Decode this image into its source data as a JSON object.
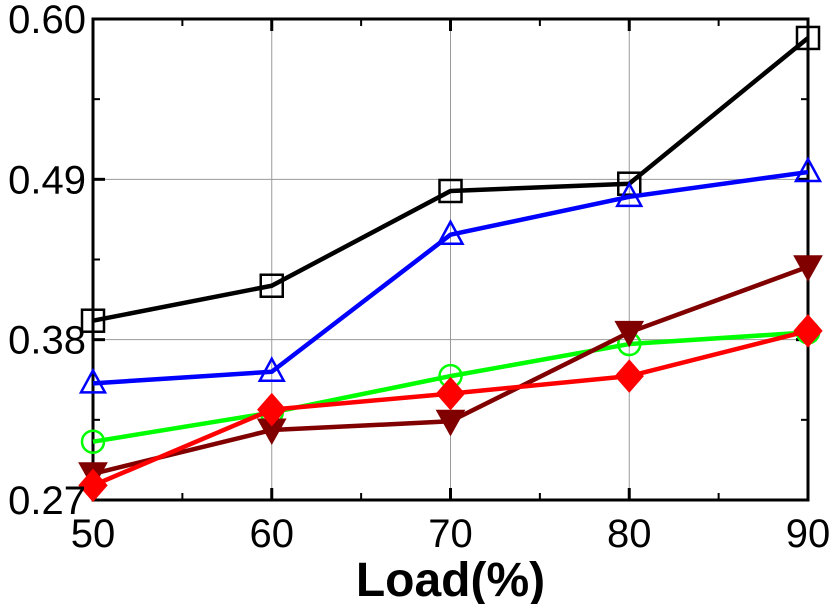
{
  "chart_data": {
    "type": "line",
    "title": "",
    "xlabel": "Load(%)",
    "ylabel": "",
    "x": [
      50,
      60,
      70,
      80,
      90
    ],
    "xlim": [
      50,
      90
    ],
    "ylim": [
      0.27,
      0.6
    ],
    "x_ticks": [
      "50",
      "60",
      "70",
      "80",
      "90"
    ],
    "y_ticks": [
      "0.27",
      "0.38",
      "0.49",
      "0.60"
    ],
    "grid": true,
    "legend": "none",
    "series": [
      {
        "color": "#000000",
        "marker": "square-open",
        "values": [
          0.393,
          0.417,
          0.482,
          0.487,
          0.587
        ]
      },
      {
        "color": "#0000ff",
        "marker": "triangle-up-open",
        "values": [
          0.35,
          0.358,
          0.452,
          0.478,
          0.495
        ]
      },
      {
        "color": "#00ff00",
        "marker": "circle-open",
        "values": [
          0.31,
          0.33,
          0.355,
          0.377,
          0.385
        ]
      },
      {
        "color": "#800000",
        "marker": "triangle-down-filled",
        "values": [
          0.288,
          0.318,
          0.324,
          0.385,
          0.43
        ]
      },
      {
        "color": "#ff0000",
        "marker": "diamond-filled",
        "values": [
          0.28,
          0.332,
          0.343,
          0.355,
          0.386
        ]
      }
    ]
  }
}
